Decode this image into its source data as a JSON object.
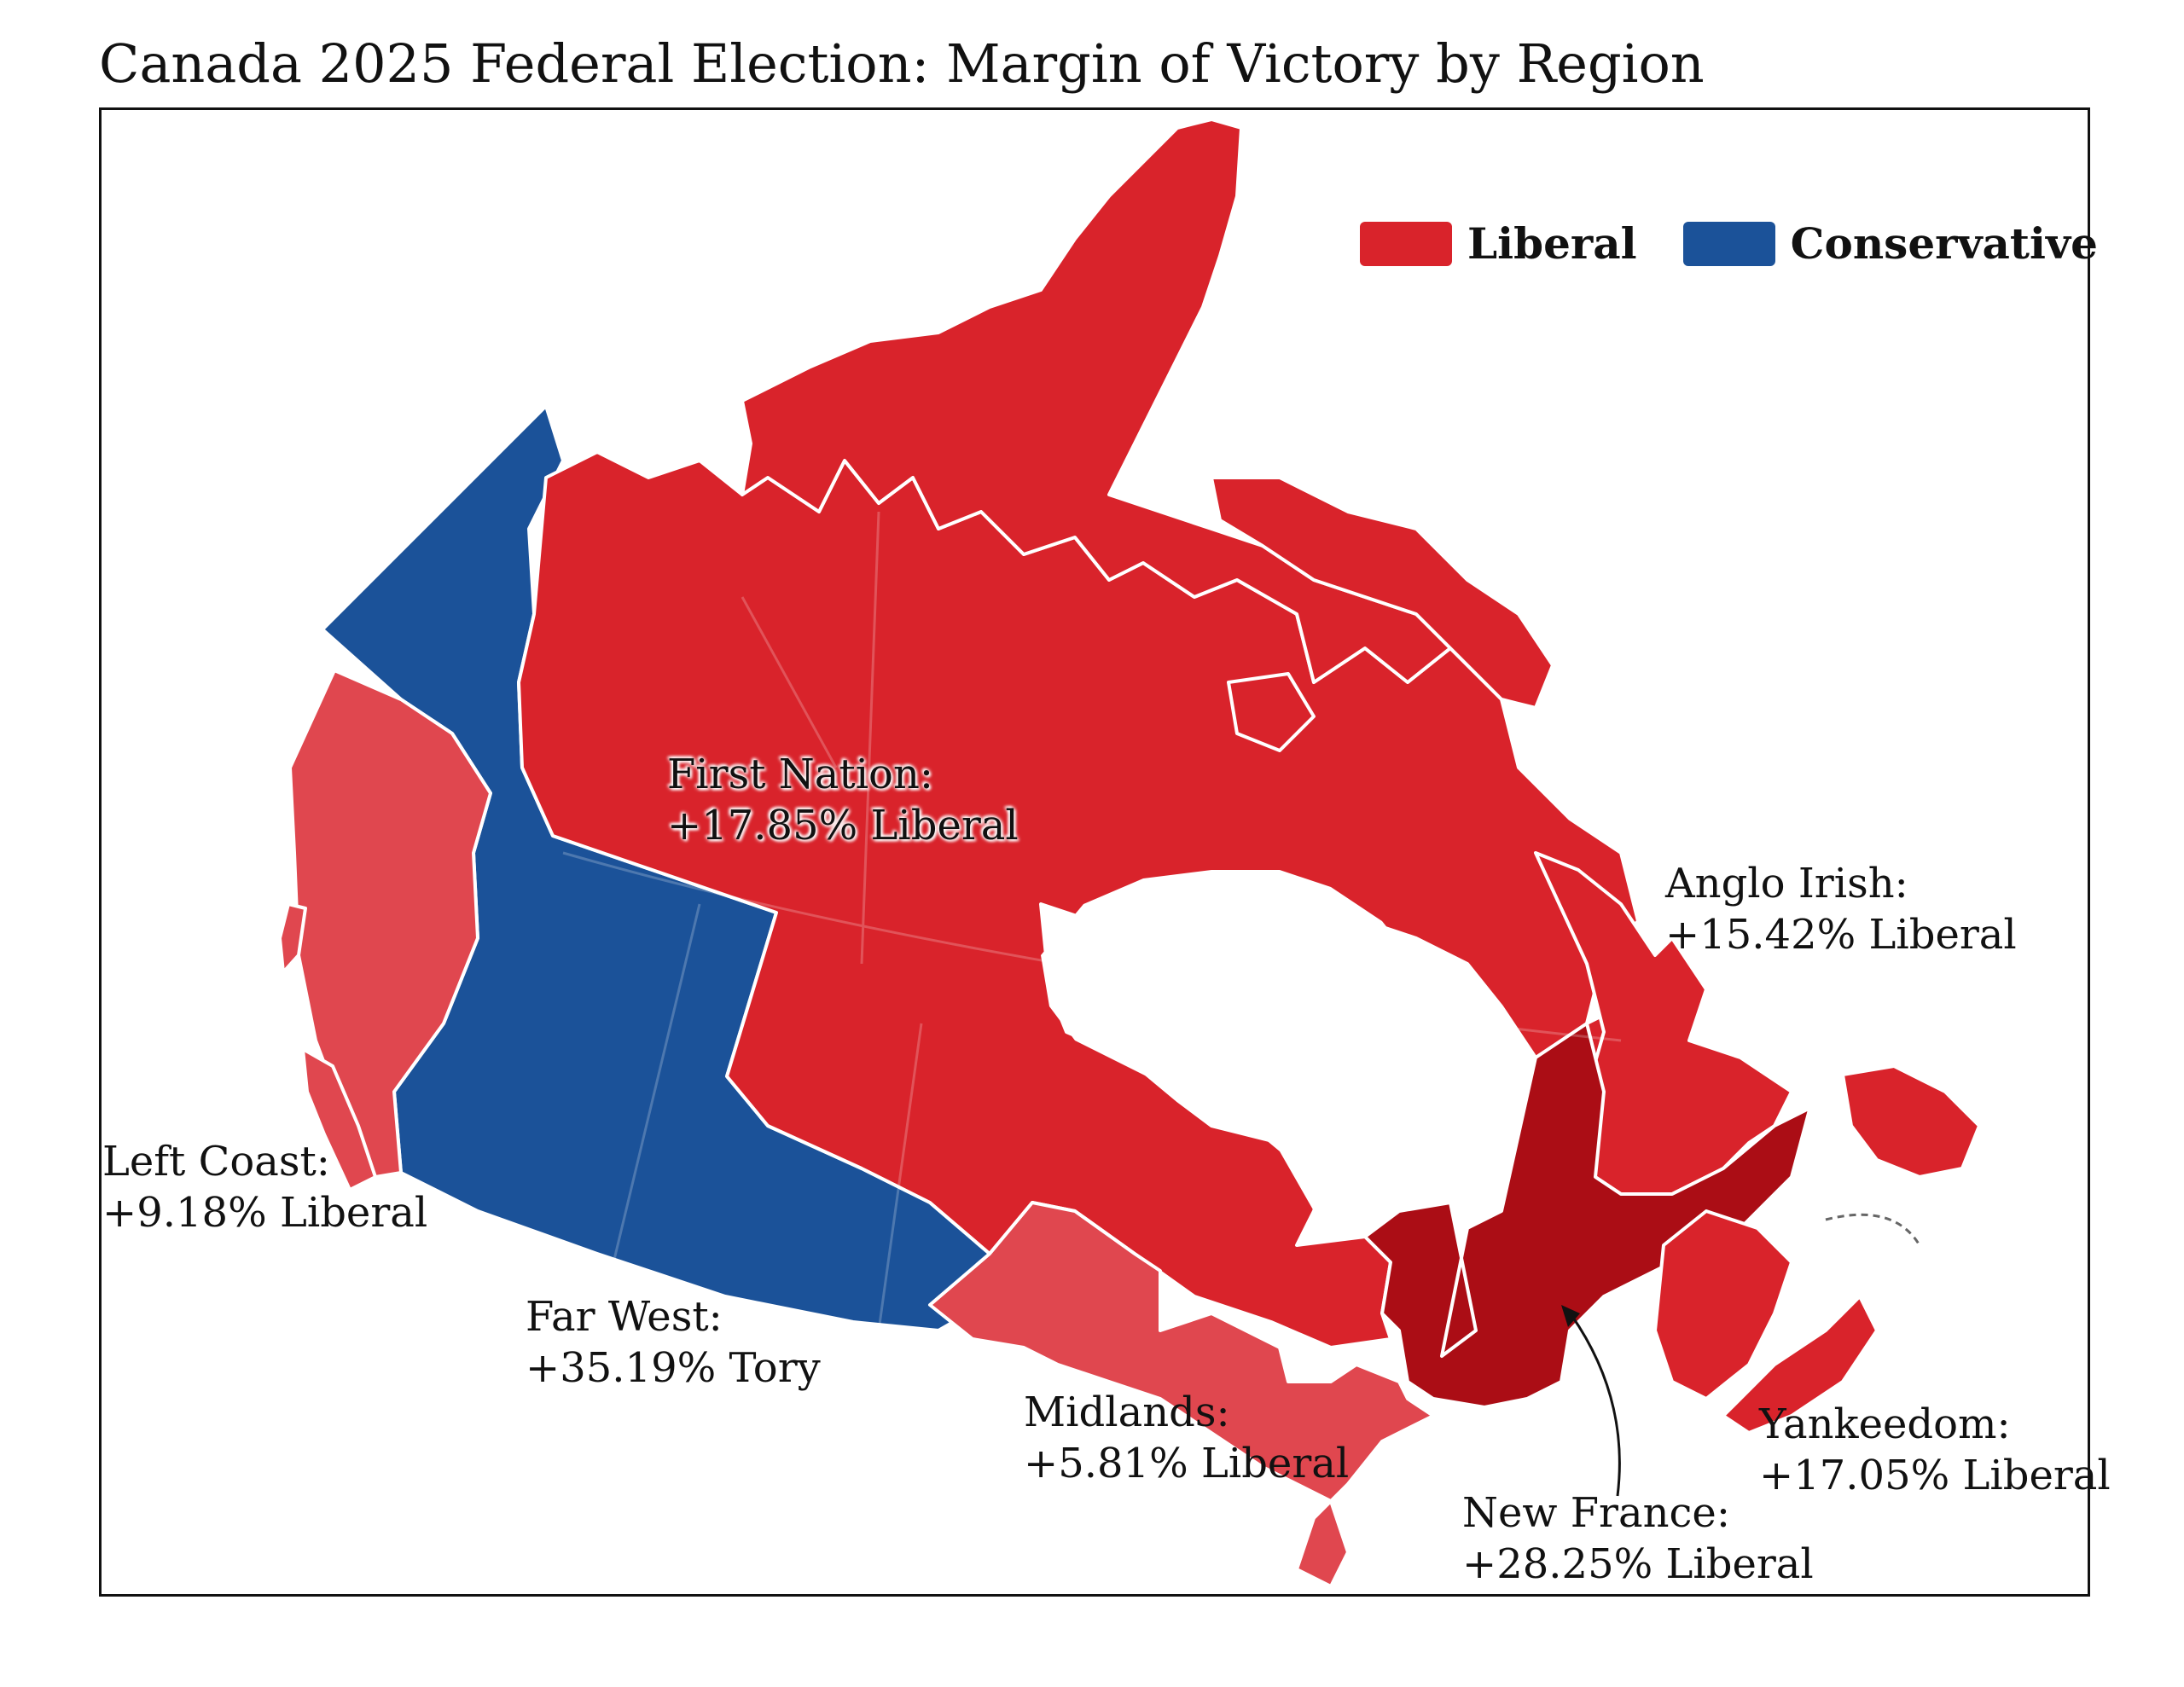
{
  "title": "Canada 2025 Federal Election: Margin of Victory by Region",
  "colors": {
    "liberal": "#d9232b",
    "liberal_light": "#e0474f",
    "liberal_dark": "#ab0d15",
    "conservative": "#1b5299"
  },
  "legend": [
    {
      "label": "Liberal",
      "color": "#d9232b"
    },
    {
      "label": "Conservative",
      "color": "#1b5299"
    }
  ],
  "regions": [
    {
      "name": "First Nation",
      "line1": "First Nation:",
      "line2": "+17.85% Liberal",
      "margin_pct": 17.85,
      "winner": "Liberal"
    },
    {
      "name": "Anglo Irish",
      "line1": "Anglo Irish:",
      "line2": "+15.42% Liberal",
      "margin_pct": 15.42,
      "winner": "Liberal"
    },
    {
      "name": "Left Coast",
      "line1": "Left Coast:",
      "line2": "+9.18% Liberal",
      "margin_pct": 9.18,
      "winner": "Liberal"
    },
    {
      "name": "Far West",
      "line1": "Far West:",
      "line2": "+35.19% Tory",
      "margin_pct": 35.19,
      "winner": "Conservative"
    },
    {
      "name": "Midlands",
      "line1": "Midlands:",
      "line2": "+5.81% Liberal",
      "margin_pct": 5.81,
      "winner": "Liberal"
    },
    {
      "name": "Yankeedom",
      "line1": "Yankeedom:",
      "line2": "+17.05% Liberal",
      "margin_pct": 17.05,
      "winner": "Liberal"
    },
    {
      "name": "New France",
      "line1": "New France:",
      "line2": "+28.25% Liberal",
      "margin_pct": 28.25,
      "winner": "Liberal"
    }
  ]
}
